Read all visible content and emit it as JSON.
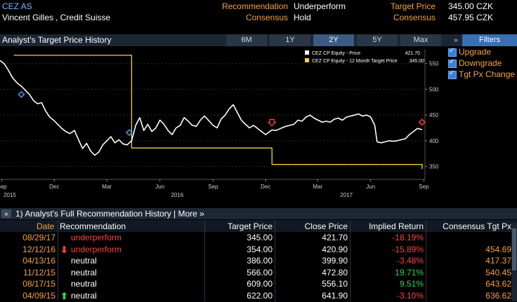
{
  "header": {
    "ticker": "CEZ AS",
    "analyst": "Vincent Gilles",
    "broker": ", Credit Suisse",
    "recommendation_label": "Recommendation",
    "recommendation_value": "Underperform",
    "consensus_label": "Consensus",
    "consensus_value": "Hold",
    "target_label": "Target Price",
    "target_value": "345.00 CZK",
    "consensus_price_label": "Consensus",
    "consensus_price_value": "457.95 CZK"
  },
  "titlebar": {
    "title": "Analyst's Target Price History",
    "tabs": [
      "6M",
      "1Y",
      "2Y",
      "5Y",
      "Max"
    ],
    "active_tab": "2Y",
    "filters_label": "Filters",
    "chevron": "»"
  },
  "filters": [
    {
      "label": "Upgrade",
      "checked": true
    },
    {
      "label": "Downgrade",
      "checked": true
    },
    {
      "label": "Tgt Px Change",
      "checked": true
    }
  ],
  "colors": {
    "accent": "#f7a23b",
    "price_line": "#ffffff",
    "target_line": "#f3d23b",
    "negative": "#ff4040",
    "positive": "#29d94a",
    "upgrade_marker": "#3f9bff",
    "downgrade_marker": "#ff3b3b"
  },
  "chart_data": {
    "type": "line",
    "legend": [
      {
        "name": "CEZ CP Equity - Price",
        "last": "421.70",
        "color": "#ffffff"
      },
      {
        "name": "CEZ CP Equity - 12 Month Target Price",
        "last": "345.00",
        "color": "#f3d23b"
      }
    ],
    "legend_placement": "top-right",
    "ylim": [
      325,
      570
    ],
    "yticks": [
      350,
      400,
      450,
      500,
      550
    ],
    "xlim": [
      "2015-08-29",
      "2017-09-03"
    ],
    "x_month_ticks": [
      {
        "date": "2015-09-01",
        "label": "Sep"
      },
      {
        "date": "2015-12-01",
        "label": "Dec"
      },
      {
        "date": "2016-03-01",
        "label": "Mar"
      },
      {
        "date": "2016-06-01",
        "label": "Jun"
      },
      {
        "date": "2016-09-01",
        "label": "Sep"
      },
      {
        "date": "2016-12-01",
        "label": "Dec"
      },
      {
        "date": "2017-03-01",
        "label": "Mar"
      },
      {
        "date": "2017-06-01",
        "label": "Jun"
      },
      {
        "date": "2017-09-01",
        "label": "Sep"
      }
    ],
    "x_year_ticks": [
      {
        "date": "2015-09-15",
        "label": "2015"
      },
      {
        "date": "2016-07-01",
        "label": "2016"
      },
      {
        "date": "2017-04-20",
        "label": "2017"
      }
    ],
    "series": [
      {
        "name": "CEZ CP Equity - Price",
        "points": [
          [
            "2015-08-29",
            556
          ],
          [
            "2015-09-05",
            550
          ],
          [
            "2015-09-12",
            538
          ],
          [
            "2015-09-20",
            522
          ],
          [
            "2015-09-28",
            512
          ],
          [
            "2015-10-05",
            506
          ],
          [
            "2015-10-12",
            498
          ],
          [
            "2015-10-19",
            490
          ],
          [
            "2015-10-26",
            478
          ],
          [
            "2015-11-02",
            472
          ],
          [
            "2015-11-09",
            474
          ],
          [
            "2015-11-16",
            458
          ],
          [
            "2015-11-23",
            446
          ],
          [
            "2015-11-30",
            440
          ],
          [
            "2015-12-07",
            432
          ],
          [
            "2015-12-14",
            424
          ],
          [
            "2015-12-21",
            418
          ],
          [
            "2015-12-28",
            414
          ],
          [
            "2016-01-05",
            420
          ],
          [
            "2016-01-12",
            402
          ],
          [
            "2016-01-19",
            385
          ],
          [
            "2016-01-26",
            395
          ],
          [
            "2016-02-02",
            380
          ],
          [
            "2016-02-09",
            372
          ],
          [
            "2016-02-16",
            378
          ],
          [
            "2016-02-23",
            392
          ],
          [
            "2016-03-01",
            400
          ],
          [
            "2016-03-08",
            408
          ],
          [
            "2016-03-15",
            396
          ],
          [
            "2016-03-22",
            402
          ],
          [
            "2016-03-29",
            394
          ],
          [
            "2016-04-05",
            392
          ],
          [
            "2016-04-13",
            400
          ],
          [
            "2016-04-20",
            430
          ],
          [
            "2016-04-27",
            445
          ],
          [
            "2016-05-04",
            420
          ],
          [
            "2016-05-11",
            432
          ],
          [
            "2016-05-18",
            418
          ],
          [
            "2016-05-25",
            425
          ],
          [
            "2016-06-01",
            440
          ],
          [
            "2016-06-08",
            432
          ],
          [
            "2016-06-15",
            420
          ],
          [
            "2016-06-22",
            412
          ],
          [
            "2016-06-29",
            425
          ],
          [
            "2016-07-06",
            430
          ],
          [
            "2016-07-13",
            445
          ],
          [
            "2016-07-20",
            438
          ],
          [
            "2016-07-27",
            430
          ],
          [
            "2016-08-03",
            428
          ],
          [
            "2016-08-10",
            440
          ],
          [
            "2016-08-17",
            448
          ],
          [
            "2016-08-24",
            440
          ],
          [
            "2016-09-01",
            430
          ],
          [
            "2016-09-08",
            425
          ],
          [
            "2016-09-15",
            442
          ],
          [
            "2016-09-22",
            450
          ],
          [
            "2016-09-29",
            462
          ],
          [
            "2016-10-06",
            470
          ],
          [
            "2016-10-13",
            455
          ],
          [
            "2016-10-20",
            440
          ],
          [
            "2016-10-27",
            432
          ],
          [
            "2016-11-03",
            425
          ],
          [
            "2016-11-10",
            430
          ],
          [
            "2016-11-17",
            424
          ],
          [
            "2016-11-24",
            418
          ],
          [
            "2016-12-01",
            412
          ],
          [
            "2016-12-08",
            418
          ],
          [
            "2016-12-12",
            421
          ],
          [
            "2016-12-19",
            420
          ],
          [
            "2016-12-27",
            424
          ],
          [
            "2017-01-05",
            428
          ],
          [
            "2017-01-12",
            430
          ],
          [
            "2017-01-19",
            432
          ],
          [
            "2017-01-26",
            440
          ],
          [
            "2017-02-02",
            438
          ],
          [
            "2017-02-09",
            446
          ],
          [
            "2017-02-16",
            450
          ],
          [
            "2017-02-23",
            444
          ],
          [
            "2017-03-02",
            440
          ],
          [
            "2017-03-09",
            436
          ],
          [
            "2017-03-16",
            438
          ],
          [
            "2017-03-23",
            436
          ],
          [
            "2017-03-30",
            442
          ],
          [
            "2017-04-06",
            444
          ],
          [
            "2017-04-13",
            440
          ],
          [
            "2017-04-20",
            446
          ],
          [
            "2017-04-27",
            448
          ],
          [
            "2017-05-04",
            450
          ],
          [
            "2017-05-11",
            452
          ],
          [
            "2017-05-18",
            448
          ],
          [
            "2017-05-25",
            450
          ],
          [
            "2017-06-01",
            446
          ],
          [
            "2017-06-08",
            430
          ],
          [
            "2017-06-12",
            398
          ],
          [
            "2017-06-19",
            396
          ],
          [
            "2017-06-26",
            398
          ],
          [
            "2017-07-03",
            400
          ],
          [
            "2017-07-10",
            399
          ],
          [
            "2017-07-17",
            400
          ],
          [
            "2017-07-24",
            402
          ],
          [
            "2017-07-31",
            404
          ],
          [
            "2017-08-07",
            412
          ],
          [
            "2017-08-14",
            418
          ],
          [
            "2017-08-21",
            424
          ],
          [
            "2017-08-29",
            421.7
          ]
        ]
      },
      {
        "name": "CEZ CP Equity - 12 Month Target Price",
        "step_points": [
          [
            "2015-09-22",
            566
          ],
          [
            "2016-04-13",
            566
          ],
          [
            "2016-04-13",
            386
          ],
          [
            "2016-12-12",
            386
          ],
          [
            "2016-12-12",
            354
          ],
          [
            "2017-08-29",
            354
          ],
          [
            "2017-08-29",
            345
          ]
        ]
      }
    ],
    "markers": [
      {
        "date": "2015-10-05",
        "value": 490,
        "kind": "upgrade",
        "shape": "diamond"
      },
      {
        "date": "2016-04-09",
        "value": 416,
        "kind": "upgrade",
        "shape": "diamond"
      },
      {
        "date": "2016-12-12",
        "value": 436,
        "kind": "downgrade",
        "shape": "arrow"
      },
      {
        "date": "2017-08-29",
        "value": 436,
        "kind": "downgrade",
        "shape": "diamond"
      }
    ]
  },
  "lower": {
    "chevron": "«",
    "title": "1) Analyst's Full Recommendation History | More »"
  },
  "table": {
    "columns": [
      "Date",
      "Recommendation",
      "Target Price",
      "Close Price",
      "Implied Return",
      "Consensus Tgt Px"
    ],
    "rows": [
      {
        "date": "08/29/17",
        "arrow": "",
        "rec": "underperform",
        "rec_color": "#ff4040",
        "target": "345.00",
        "close": "421.70",
        "ret": "-18.19%",
        "ret_color": "#ff4040",
        "cons": ""
      },
      {
        "date": "12/12/16",
        "arrow": "down",
        "rec": "underperform",
        "rec_color": "#ff4040",
        "target": "354.00",
        "close": "420.90",
        "ret": "-15.89%",
        "ret_color": "#ff4040",
        "cons": "454.69"
      },
      {
        "date": "04/13/16",
        "arrow": "",
        "rec": "neutral",
        "rec_color": "#ffffff",
        "target": "386.00",
        "close": "399.90",
        "ret": "-3.48%",
        "ret_color": "#ff4040",
        "cons": "417.37"
      },
      {
        "date": "11/12/15",
        "arrow": "",
        "rec": "neutral",
        "rec_color": "#ffffff",
        "target": "566.00",
        "close": "472.80",
        "ret": "19.71%",
        "ret_color": "#29d94a",
        "cons": "540.45"
      },
      {
        "date": "08/17/15",
        "arrow": "",
        "rec": "neutral",
        "rec_color": "#ffffff",
        "target": "609.00",
        "close": "556.10",
        "ret": "9.51%",
        "ret_color": "#29d94a",
        "cons": "643.62"
      },
      {
        "date": "04/09/15",
        "arrow": "up",
        "rec": "neutral",
        "rec_color": "#ffffff",
        "target": "622.00",
        "close": "641.90",
        "ret": "-3.10%",
        "ret_color": "#ff4040",
        "cons": "636.62"
      }
    ]
  }
}
